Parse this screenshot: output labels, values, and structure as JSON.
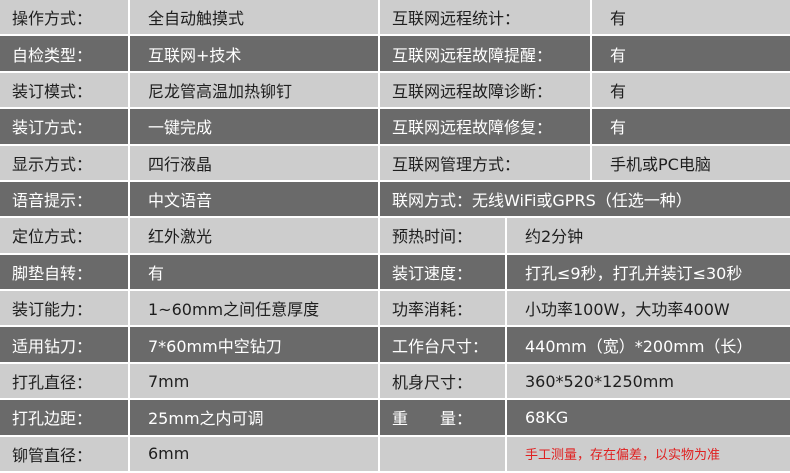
{
  "table": {
    "rows": [
      [
        "操作方式：",
        "全自动触摸式",
        "互联网远程统计：",
        "有"
      ],
      [
        "自检类型：",
        "互联网+技术",
        "互联网远程故障提醒：",
        "有"
      ],
      [
        "装订模式：",
        "尼龙管高温加热铆钉",
        "互联网远程故障诊断：",
        "有"
      ],
      [
        "装订方式：",
        "一键完成",
        "互联网远程故障修复：",
        "有"
      ],
      [
        "显示方式：",
        "四行液晶",
        "互联网管理方式：",
        "手机或PC电脑"
      ],
      [
        "语音提示：",
        "中文语音",
        "联网方式：无线WiFi或GPRS（任选一种）"
      ],
      [
        "定位方式：",
        "红外激光",
        "预热时间：",
        "约2分钟"
      ],
      [
        "脚垫自转：",
        "有",
        "装订速度：",
        "打孔≤9秒，打孔并装订≤30秒"
      ],
      [
        "装订能力：",
        "1~60mm之间任意厚度",
        "功率消耗：",
        "小功率100W，大功率400W"
      ],
      [
        "适用钻刀：",
        "7*60mm中空钻刀",
        "工作台尺寸：",
        "440mm（宽）*200mm（长）"
      ],
      [
        "打孔直径：",
        "7mm",
        "机身尺寸：",
        "360*520*1250mm"
      ],
      [
        "打孔边距：",
        "25mm之内可调",
        "重　　量：",
        "68KG"
      ],
      [
        "铆管直径：",
        "6mm",
        "",
        "手工测量，存在偏差，以实物为准"
      ]
    ]
  }
}
